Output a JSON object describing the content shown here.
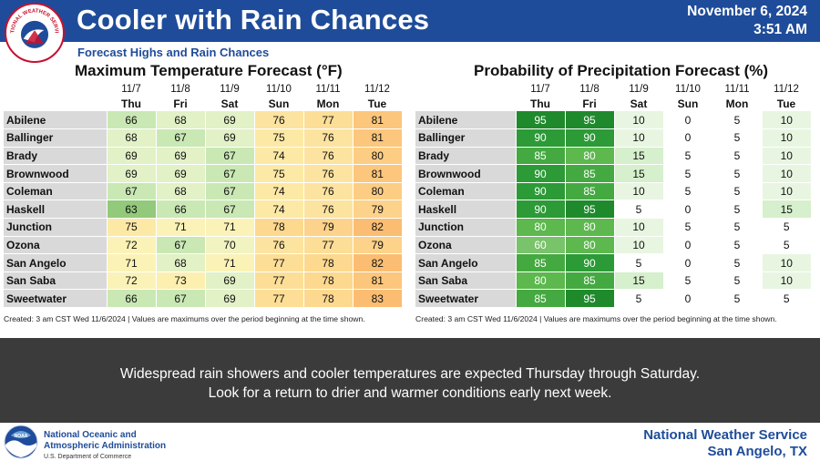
{
  "header": {
    "title": "Cooler with Rain Chances",
    "date": "November 6, 2024",
    "time": "3:51 AM",
    "logo_text": "NATIONAL WEATHER SERVICE"
  },
  "subheader": "Forecast Highs and Rain Chances",
  "temp_panel": {
    "title": "Maximum Temperature Forecast (°F)",
    "dates": [
      "11/7",
      "11/8",
      "11/9",
      "11/10",
      "11/11",
      "11/12"
    ],
    "days": [
      "Thu",
      "Fri",
      "Sat",
      "Sun",
      "Mon",
      "Tue"
    ],
    "rows": [
      {
        "city": "Abilene",
        "values": [
          66,
          68,
          69,
          76,
          77,
          81
        ]
      },
      {
        "city": "Ballinger",
        "values": [
          68,
          67,
          69,
          75,
          76,
          81
        ]
      },
      {
        "city": "Brady",
        "values": [
          69,
          69,
          67,
          74,
          76,
          80
        ]
      },
      {
        "city": "Brownwood",
        "values": [
          69,
          69,
          67,
          75,
          76,
          81
        ]
      },
      {
        "city": "Coleman",
        "values": [
          67,
          68,
          67,
          74,
          76,
          80
        ]
      },
      {
        "city": "Haskell",
        "values": [
          63,
          66,
          67,
          74,
          76,
          79
        ]
      },
      {
        "city": "Junction",
        "values": [
          75,
          71,
          71,
          78,
          79,
          82
        ]
      },
      {
        "city": "Ozona",
        "values": [
          72,
          67,
          70,
          76,
          77,
          79
        ]
      },
      {
        "city": "San Angelo",
        "values": [
          71,
          68,
          71,
          77,
          78,
          82
        ]
      },
      {
        "city": "San Saba",
        "values": [
          72,
          73,
          69,
          77,
          78,
          81
        ]
      },
      {
        "city": "Sweetwater",
        "values": [
          66,
          67,
          69,
          77,
          78,
          83
        ]
      }
    ],
    "footnote": "Created: 3 am CST Wed 11/6/2024  |  Values are maximums over the period beginning at the time shown."
  },
  "pop_panel": {
    "title": "Probability of Precipitation Forecast (%)",
    "dates": [
      "11/7",
      "11/8",
      "11/9",
      "11/10",
      "11/11",
      "11/12"
    ],
    "days": [
      "Thu",
      "Fri",
      "Sat",
      "Sun",
      "Mon",
      "Tue"
    ],
    "rows": [
      {
        "city": "Abilene",
        "values": [
          95,
          95,
          10,
          0,
          5,
          10
        ]
      },
      {
        "city": "Ballinger",
        "values": [
          90,
          90,
          10,
          0,
          5,
          10
        ]
      },
      {
        "city": "Brady",
        "values": [
          85,
          80,
          15,
          5,
          5,
          10
        ]
      },
      {
        "city": "Brownwood",
        "values": [
          90,
          85,
          15,
          5,
          5,
          10
        ]
      },
      {
        "city": "Coleman",
        "values": [
          90,
          85,
          10,
          5,
          5,
          10
        ]
      },
      {
        "city": "Haskell",
        "values": [
          90,
          95,
          5,
          0,
          5,
          15
        ]
      },
      {
        "city": "Junction",
        "values": [
          80,
          80,
          10,
          5,
          5,
          5
        ]
      },
      {
        "city": "Ozona",
        "values": [
          60,
          80,
          10,
          0,
          5,
          5
        ]
      },
      {
        "city": "San Angelo",
        "values": [
          85,
          90,
          5,
          0,
          5,
          10
        ]
      },
      {
        "city": "San Saba",
        "values": [
          80,
          85,
          15,
          5,
          5,
          10
        ]
      },
      {
        "city": "Sweetwater",
        "values": [
          85,
          95,
          5,
          0,
          5,
          5
        ]
      }
    ],
    "footnote": "Created: 3 am CST Wed 11/6/2024  |  Values are maximums over the period beginning at the time shown."
  },
  "message": {
    "line1": "Widespread rain showers and cooler temperatures are expected Thursday through Saturday.",
    "line2": "Look for a return to drier and warmer conditions early next week."
  },
  "footer": {
    "noaa_line1": "National Oceanic and",
    "noaa_line2": "Atmospheric Administration",
    "noaa_line3": "U.S. Department of Commerce",
    "noaa_logo_text": "NOAA",
    "nws_line1": "National Weather Service",
    "nws_line2": "San Angelo, TX"
  }
}
